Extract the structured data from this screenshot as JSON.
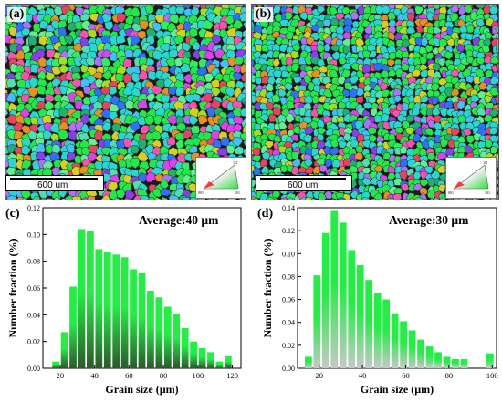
{
  "panels": {
    "a": {
      "letter": "(a)",
      "scalebar": "600 um"
    },
    "b": {
      "letter": "(b)",
      "scalebar": "600 um"
    },
    "c": {
      "letter": "(c)"
    },
    "d": {
      "letter": "(d)"
    }
  },
  "ipf_legend": {
    "labels": [
      "111",
      "001",
      "101"
    ]
  },
  "colors": {
    "bar_top": "#22ee44",
    "bar_bottom_c": "#2a5a2a",
    "bar_bottom_d": "#c8c8c8",
    "grain_palette": [
      "#22e84a",
      "#30f060",
      "#28d8d0",
      "#3070ff",
      "#8a3cf0",
      "#e040f0",
      "#ff50b0",
      "#f04060",
      "#d8d020",
      "#a0e020",
      "#40c0ff",
      "#20b070",
      "#60f090",
      "#b070ff",
      "#e89020",
      "#50e0b0"
    ]
  },
  "chart_data": [
    {
      "type": "bar",
      "panel": "c",
      "annotation": "Average:40 µm",
      "xlabel": "Grain size (µm)",
      "ylabel": "Number fraction (%)",
      "xlim": [
        10,
        125
      ],
      "ylim": [
        0,
        0.12
      ],
      "xticks": [
        20,
        40,
        60,
        80,
        100,
        120
      ],
      "yticks": [
        0.0,
        0.02,
        0.04,
        0.06,
        0.08,
        0.1,
        0.12
      ],
      "x": [
        17.5,
        22.5,
        27.5,
        32.5,
        37.5,
        42.5,
        47.5,
        52.5,
        57.5,
        62.5,
        67.5,
        72.5,
        77.5,
        82.5,
        87.5,
        92.5,
        97.5,
        102.5,
        107.5,
        112.5,
        117.5
      ],
      "values": [
        0.005,
        0.027,
        0.061,
        0.104,
        0.103,
        0.089,
        0.087,
        0.085,
        0.083,
        0.074,
        0.071,
        0.058,
        0.053,
        0.046,
        0.041,
        0.03,
        0.02,
        0.015,
        0.012,
        0.005,
        0.009
      ]
    },
    {
      "type": "bar",
      "panel": "d",
      "annotation": "Average:30 µm",
      "xlabel": "Grain size (µm)",
      "ylabel": "Number fraction (%)",
      "xlim": [
        10,
        102
      ],
      "ylim": [
        0,
        0.14
      ],
      "xticks": [
        20,
        40,
        60,
        80,
        100
      ],
      "yticks": [
        0.0,
        0.02,
        0.04,
        0.06,
        0.08,
        0.1,
        0.12,
        0.14
      ],
      "x": [
        15,
        19,
        23,
        27,
        31,
        35,
        39,
        43,
        47,
        51,
        55,
        59,
        63,
        67,
        71,
        75,
        79,
        83,
        87,
        99
      ],
      "values": [
        0.01,
        0.081,
        0.118,
        0.138,
        0.127,
        0.103,
        0.09,
        0.077,
        0.066,
        0.06,
        0.048,
        0.041,
        0.033,
        0.025,
        0.019,
        0.014,
        0.01,
        0.008,
        0.008,
        0.013
      ]
    }
  ]
}
